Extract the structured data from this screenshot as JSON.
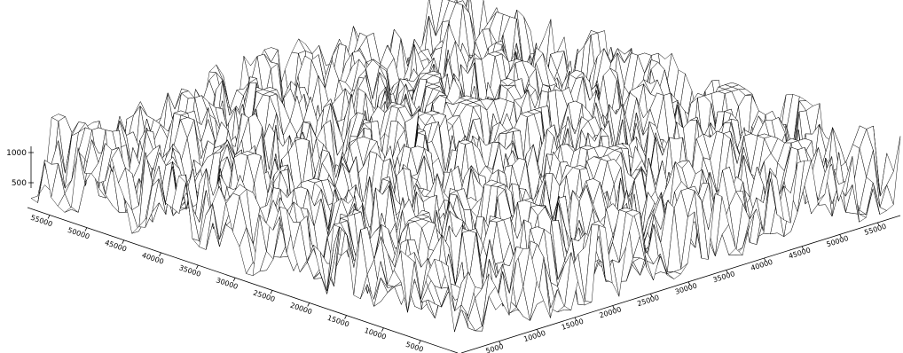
{
  "chart_data": {
    "type": "surface",
    "title": "",
    "xlabel": "",
    "ylabel": "",
    "zlabel": "",
    "z_ticks": [
      "500",
      "1000"
    ],
    "x_ticks": [
      "5000",
      "10000",
      "15000",
      "20000",
      "25000",
      "30000",
      "35000",
      "40000",
      "45000",
      "50000",
      "55000"
    ],
    "y_ticks": [
      "5000",
      "10000",
      "15000",
      "20000",
      "25000",
      "30000",
      "35000",
      "40000",
      "45000",
      "50000",
      "55000"
    ],
    "xlim": [
      0,
      58000
    ],
    "ylim": [
      0,
      58000
    ],
    "zlim": [
      400,
      1100
    ],
    "grid": false,
    "wireframe": true,
    "colors": {
      "line": "#000000",
      "fill": "#ffffff"
    }
  }
}
